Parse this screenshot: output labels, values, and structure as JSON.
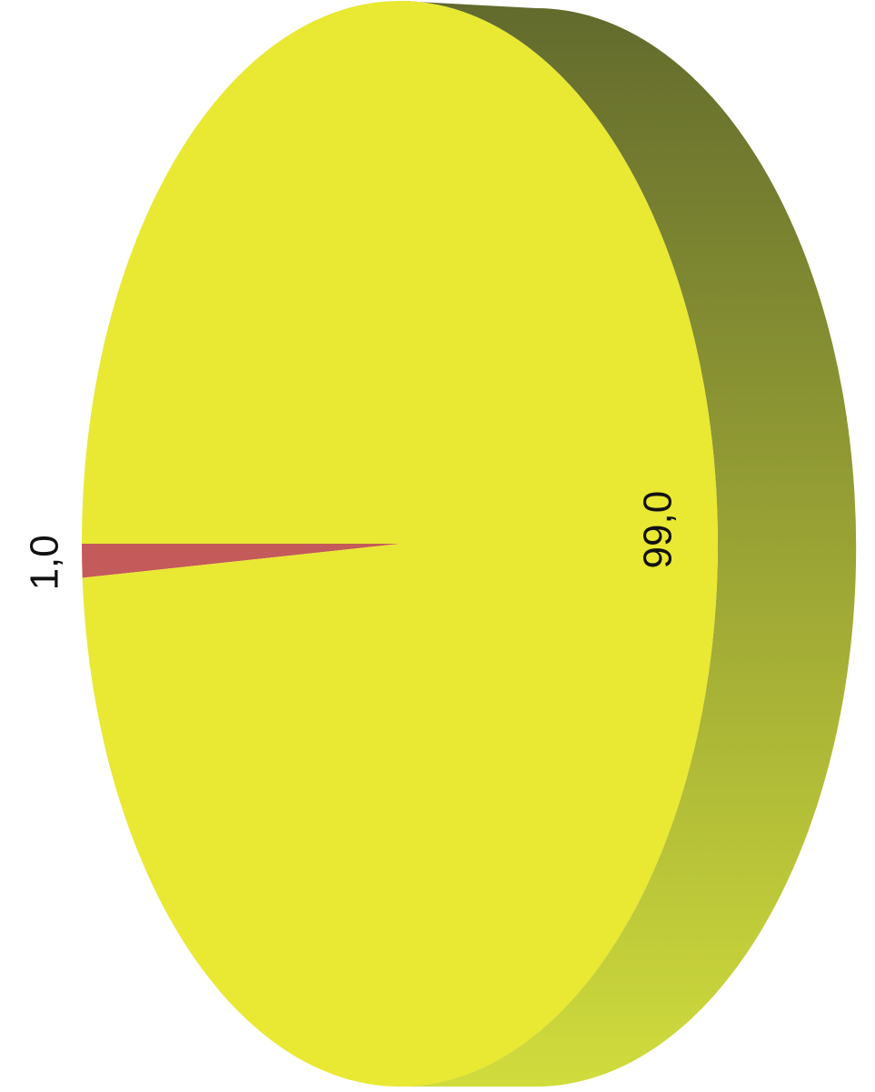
{
  "chart_data": {
    "type": "pie",
    "values": [
      1,
      99
    ],
    "value_labels": [
      "1,0",
      "99,0"
    ],
    "colors": [
      "#c45a5a",
      "#e9e832"
    ],
    "side_colors": [
      "#626a2d",
      "#d0dc3c"
    ]
  }
}
